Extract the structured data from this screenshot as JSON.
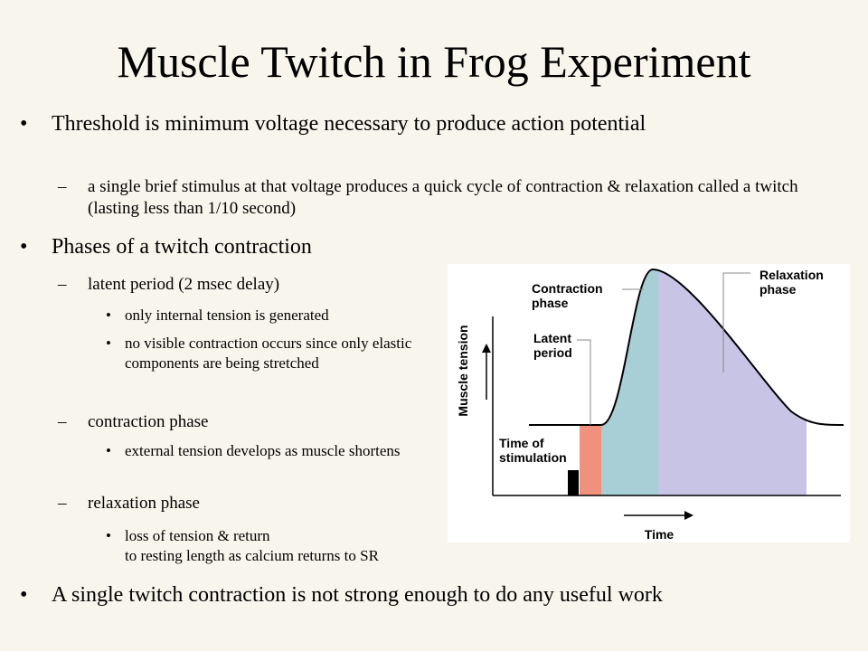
{
  "title": "Muscle Twitch in Frog Experiment",
  "bullets": [
    {
      "text": "Threshold is minimum voltage necessary to produce action potential",
      "children": [
        {
          "text": "a single brief stimulus at that voltage produces a quick cycle of contraction & relaxation called a twitch (lasting less than 1/10 second)"
        }
      ]
    },
    {
      "text": "Phases of a twitch contraction",
      "children": [
        {
          "text": "latent period (2 msec delay)",
          "children": [
            "only internal tension is generated",
            "no visible contraction occurs since only elastic components are being stretched"
          ]
        },
        {
          "text": "contraction phase",
          "children": [
            "external tension develops as muscle shortens"
          ]
        },
        {
          "text": "relaxation phase",
          "children": [
            "loss of tension & return\nto resting length as calcium returns to SR"
          ]
        }
      ]
    },
    {
      "text": "A single twitch contraction is not strong enough to do any useful work"
    }
  ],
  "figure": {
    "contraction_label": "Contraction phase",
    "latent_label": "Latent period",
    "stimulation_label": "Time of stimulation",
    "relaxation_label": "Relaxation phase",
    "y_axis": "Muscle tension",
    "x_axis": "Time"
  }
}
